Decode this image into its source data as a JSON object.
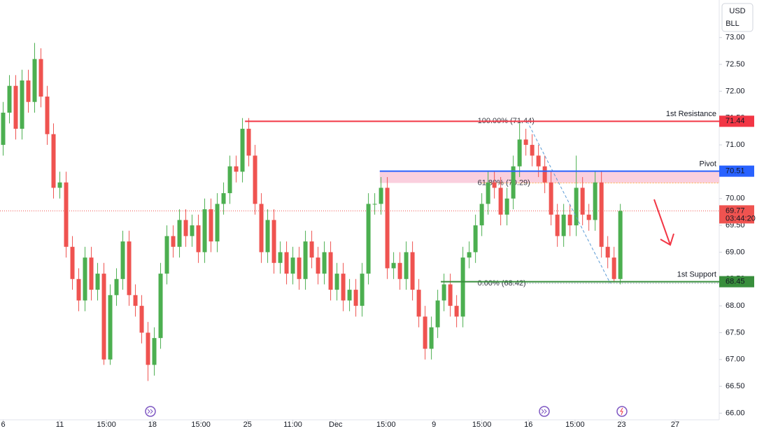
{
  "chart_data": {
    "type": "candlestick",
    "currency_label": [
      "USD",
      "BLL"
    ],
    "up_color": "#4caf50",
    "down_color": "#ef5350",
    "xlim": [
      -0.5,
      113.7
    ],
    "ylim": [
      65.85,
      73.7
    ],
    "yticks": [
      {
        "value": 73,
        "label": "73.00"
      },
      {
        "value": 72.5,
        "label": "72.50"
      },
      {
        "value": 72,
        "label": "72.00"
      },
      {
        "value": 71.5,
        "label": "71.50"
      },
      {
        "value": 71,
        "label": "71.00"
      },
      {
        "value": 70.5,
        "label": "70.50"
      },
      {
        "value": 70,
        "label": "70.00"
      },
      {
        "value": 69.5,
        "label": "69.50"
      },
      {
        "value": 69,
        "label": "69.00"
      },
      {
        "value": 68.5,
        "label": "68.50"
      },
      {
        "value": 68,
        "label": "68.00"
      },
      {
        "value": 67.5,
        "label": "67.50"
      },
      {
        "value": 67,
        "label": "67.00"
      },
      {
        "value": 66.5,
        "label": "66.50"
      },
      {
        "value": 66,
        "label": "66.00"
      }
    ],
    "xticks": [
      {
        "value": 0,
        "label": "6"
      },
      {
        "value": 9,
        "label": "11"
      },
      {
        "value": 16.4,
        "label": "15:00"
      },
      {
        "value": 23.7,
        "label": "18"
      },
      {
        "value": 31.4,
        "label": "15:00"
      },
      {
        "value": 38.8,
        "label": "25"
      },
      {
        "value": 46,
        "label": "11:00"
      },
      {
        "value": 52.8,
        "label": "Dec"
      },
      {
        "value": 60.8,
        "label": "15:00"
      },
      {
        "value": 68.4,
        "label": "9"
      },
      {
        "value": 76,
        "label": "15:00"
      },
      {
        "value": 83.4,
        "label": "16"
      },
      {
        "value": 90.8,
        "label": "15:00"
      },
      {
        "value": 98.2,
        "label": "23"
      },
      {
        "value": 106.7,
        "label": "27"
      }
    ],
    "open": [
      71.0,
      71.6,
      72.1,
      71.3,
      72.2,
      71.8,
      72.6,
      71.9,
      71.2,
      70.2,
      70.3,
      69.1,
      68.5,
      68.1,
      68.9,
      68.3,
      68.6,
      67.0,
      68.2,
      68.5,
      69.2,
      68.2,
      68.0,
      67.5,
      66.9,
      67.4,
      68.6,
      69.3,
      69.1,
      69.6,
      69.3,
      69.5,
      69.0,
      69.8,
      69.2,
      69.9,
      70.1,
      70.6,
      70.5,
      71.3,
      70.8,
      69.9,
      69.0,
      69.6,
      68.8,
      69.0,
      68.6,
      68.9,
      68.5,
      69.2,
      68.9,
      68.6,
      69.0,
      68.3,
      68.6,
      68.1,
      68.3,
      68.0,
      68.6,
      69.9,
      69.9,
      70.2,
      68.7,
      68.8,
      68.5,
      69.0,
      68.3,
      67.8,
      67.2,
      67.6,
      68.1,
      68.4,
      68.0,
      67.8,
      68.9,
      69.0,
      69.5,
      69.9,
      70.3,
      70.2,
      69.7,
      70.0,
      70.6,
      71.1,
      71.0,
      70.8,
      70.6,
      70.3,
      69.7,
      69.3,
      69.7,
      69.5,
      70.2,
      69.7,
      69.6,
      70.3,
      69.1,
      68.9,
      68.5
    ],
    "high": [
      71.8,
      72.3,
      72.3,
      72.4,
      72.4,
      72.9,
      72.8,
      72.1,
      71.4,
      70.5,
      70.5,
      69.3,
      68.7,
      69.1,
      69.1,
      68.8,
      68.8,
      68.4,
      68.7,
      69.4,
      69.4,
      68.4,
      68.2,
      67.7,
      67.6,
      68.8,
      69.5,
      69.5,
      69.8,
      69.8,
      69.7,
      69.7,
      70.0,
      70.0,
      70.1,
      70.3,
      70.8,
      70.8,
      71.5,
      71.5,
      71.0,
      70.1,
      69.8,
      69.8,
      69.2,
      69.2,
      69.1,
      69.1,
      69.4,
      69.4,
      69.1,
      69.2,
      69.2,
      68.8,
      68.8,
      68.5,
      68.5,
      68.8,
      70.1,
      70.1,
      70.4,
      70.4,
      69.0,
      69.0,
      69.2,
      69.2,
      68.5,
      68.0,
      67.8,
      68.3,
      68.6,
      68.6,
      68.2,
      69.1,
      69.2,
      69.7,
      70.1,
      70.5,
      70.5,
      70.4,
      70.2,
      70.8,
      71.4,
      71.3,
      71.2,
      71.0,
      70.8,
      70.5,
      69.9,
      69.9,
      69.9,
      70.8,
      70.4,
      69.9,
      70.5,
      70.5,
      69.3,
      69.1,
      69.9
    ],
    "low": [
      70.8,
      71.4,
      71.1,
      71.1,
      71.6,
      71.6,
      71.7,
      71.0,
      70.0,
      70.0,
      68.9,
      68.3,
      67.9,
      67.9,
      68.1,
      68.1,
      66.9,
      66.9,
      68.0,
      68.3,
      68.0,
      67.8,
      67.3,
      66.6,
      66.7,
      67.2,
      68.4,
      68.9,
      68.9,
      69.1,
      69.1,
      68.8,
      68.8,
      69.0,
      69.0,
      69.7,
      69.9,
      70.3,
      70.3,
      70.6,
      69.7,
      68.8,
      68.8,
      68.6,
      68.6,
      68.4,
      68.4,
      68.3,
      68.3,
      68.7,
      68.4,
      68.4,
      68.1,
      68.1,
      67.9,
      67.9,
      67.8,
      67.8,
      68.4,
      69.7,
      69.7,
      68.5,
      68.5,
      68.3,
      68.3,
      68.1,
      67.6,
      67.0,
      67.0,
      67.4,
      67.9,
      67.8,
      67.6,
      67.6,
      68.7,
      68.8,
      69.3,
      69.7,
      70.0,
      69.5,
      69.5,
      69.8,
      70.4,
      70.8,
      70.6,
      70.4,
      70.1,
      69.5,
      69.1,
      69.1,
      69.3,
      69.3,
      69.5,
      69.4,
      69.4,
      68.9,
      68.7,
      68.45,
      68.4
    ],
    "close": [
      71.6,
      72.1,
      71.3,
      72.2,
      71.8,
      72.6,
      71.9,
      71.2,
      70.2,
      70.3,
      69.1,
      68.5,
      68.1,
      68.9,
      68.3,
      68.6,
      67.0,
      68.2,
      68.5,
      69.2,
      68.2,
      68.0,
      67.5,
      66.9,
      67.4,
      68.6,
      69.3,
      69.1,
      69.6,
      69.3,
      69.5,
      69.0,
      69.8,
      69.2,
      69.9,
      70.1,
      70.6,
      70.5,
      71.3,
      70.8,
      69.9,
      69.0,
      69.6,
      68.8,
      69.0,
      68.6,
      68.9,
      68.5,
      69.2,
      68.9,
      68.6,
      69.0,
      68.3,
      68.6,
      68.1,
      68.3,
      68.0,
      68.6,
      69.9,
      69.9,
      70.2,
      68.7,
      68.8,
      68.5,
      69.0,
      68.3,
      67.8,
      67.2,
      67.6,
      68.1,
      68.4,
      68.0,
      67.8,
      68.9,
      69.0,
      69.5,
      69.9,
      70.3,
      70.2,
      69.7,
      70.0,
      70.6,
      71.1,
      71.0,
      70.8,
      70.6,
      70.3,
      69.7,
      69.3,
      69.7,
      69.5,
      70.2,
      69.7,
      69.6,
      70.3,
      69.1,
      68.9,
      68.5,
      69.77
    ],
    "last_price": 69.77,
    "countdown": "03:44:20",
    "levels": [
      {
        "name": "1st Resistance",
        "value": 71.44,
        "color": "#f23645",
        "start": 38.4
      },
      {
        "name": "Pivot",
        "value": 70.51,
        "color": "#2962ff",
        "start": 59.8
      },
      {
        "name": "1st Support",
        "value": 68.45,
        "color": "#388e3c",
        "start": 69.5
      }
    ],
    "zone": {
      "from": 70.51,
      "to": 70.29,
      "start": 59.8,
      "color": "#f8bbd0"
    },
    "fib": [
      {
        "label": "100.00% (71.44)",
        "value": 71.44,
        "start": 76.0
      },
      {
        "label": "61.80% (70.29)",
        "value": 70.29,
        "start": 76.0
      },
      {
        "label": "0.00% (68.42)",
        "value": 68.42,
        "start": 76.0
      }
    ],
    "trend_line": {
      "x": [
        83.2,
        96.4
      ],
      "y": [
        71.44,
        68.42
      ]
    }
  }
}
